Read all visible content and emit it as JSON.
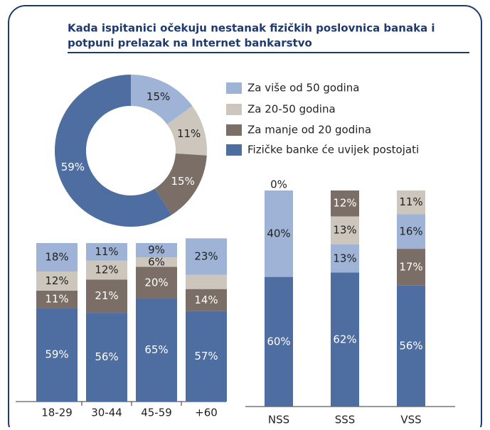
{
  "title_lines": [
    "Kada ispitanici očekuju nestanak fizičkih poslovnica banaka i",
    "potpuni prelazak na Internet bankarstvo"
  ],
  "chart_data": [
    {
      "type": "donut",
      "categories": [
        "Za više od 50 godina",
        "Za 20-50 godina",
        "Za manje od 20 godina",
        "Fizičke banke će uvijek postojati"
      ],
      "values": [
        15,
        11,
        15,
        59
      ],
      "value_labels": [
        "15%",
        "11%",
        "15%",
        "59%"
      ],
      "colors": [
        "#9fb3d6",
        "#cdc6bd",
        "#7b6e66",
        "#4e6da0"
      ]
    },
    {
      "type": "stacked-bar",
      "categories": [
        "18-29",
        "30-44",
        "45-59",
        "+60"
      ],
      "ylim": [
        0,
        100
      ],
      "series": [
        {
          "color": "#4e6da0",
          "values": [
            59,
            56,
            65,
            57
          ],
          "value_labels": [
            "59%",
            "56%",
            "65%",
            "57%"
          ]
        },
        {
          "color": "#7b6e66",
          "values": [
            11,
            21,
            20,
            14
          ],
          "value_labels": [
            "11%",
            "21%",
            "20%",
            "14%"
          ]
        },
        {
          "color": "#cdc6bd",
          "values": [
            12,
            12,
            6,
            9
          ],
          "value_labels": [
            "12%",
            "12%",
            "6%",
            null
          ]
        },
        {
          "color": "#9fb3d6",
          "values": [
            18,
            11,
            9,
            23
          ],
          "value_labels": [
            "18%",
            "11%",
            "9%",
            "23%"
          ]
        }
      ]
    },
    {
      "type": "stacked-bar-ordered",
      "ylim": [
        0,
        100
      ],
      "bars": [
        {
          "category": "NSS",
          "segments": [
            {
              "color": "#4e6da0",
              "value": 60,
              "value_label": "60%"
            },
            {
              "color": "#9fb3d6",
              "value": 40,
              "value_label": "40%"
            },
            {
              "color": "#cdc6bd",
              "value": 0,
              "value_label": "0%"
            }
          ]
        },
        {
          "category": "SSS",
          "segments": [
            {
              "color": "#4e6da0",
              "value": 62,
              "value_label": "62%"
            },
            {
              "color": "#9fb3d6",
              "value": 13,
              "value_label": "13%"
            },
            {
              "color": "#cdc6bd",
              "value": 13,
              "value_label": "13%"
            },
            {
              "color": "#7b6e66",
              "value": 12,
              "value_label": "12%"
            }
          ]
        },
        {
          "category": "VSS",
          "segments": [
            {
              "color": "#4e6da0",
              "value": 56,
              "value_label": "56%"
            },
            {
              "color": "#7b6e66",
              "value": 17,
              "value_label": "17%"
            },
            {
              "color": "#9fb3d6",
              "value": 16,
              "value_label": "16%"
            },
            {
              "color": "#cdc6bd",
              "value": 11,
              "value_label": "11%"
            }
          ]
        }
      ]
    }
  ]
}
